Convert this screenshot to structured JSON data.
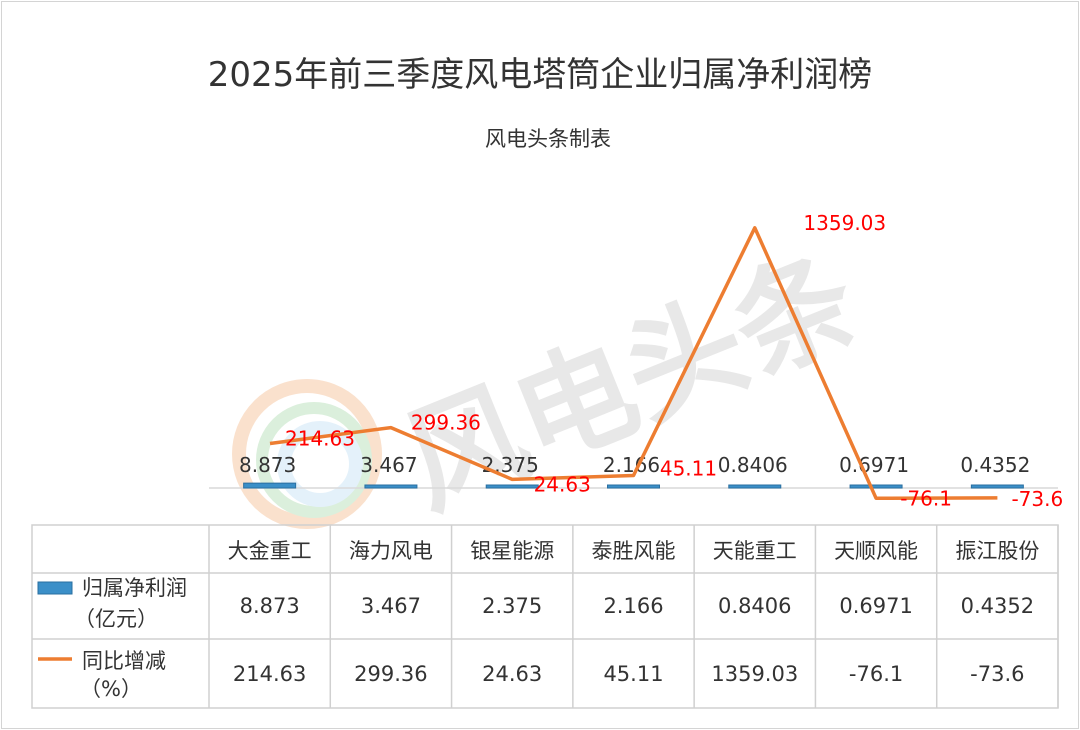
{
  "chart_data": {
    "type": "bar",
    "title": "2025年前三季度风电塔筒企业归属净利润榜",
    "subtitle": "风电头条制表",
    "watermark": "风电头条",
    "categories": [
      "大金重工",
      "海力风电",
      "银星能源",
      "泰胜风能",
      "天能重工",
      "天顺风能",
      "振江股份"
    ],
    "series": [
      {
        "name": "归属净利润（亿元）",
        "type": "bar",
        "values": [
          8.873,
          3.467,
          2.375,
          2.166,
          0.8406,
          0.6971,
          0.4352
        ],
        "labels": [
          "8.873",
          "3.467",
          "2.375",
          "2.166",
          "0.8406",
          "0.6971",
          "0.4352"
        ],
        "color": "#3b8fc8"
      },
      {
        "name": "同比增减（%）",
        "type": "line",
        "values": [
          214.63,
          299.36,
          24.63,
          45.11,
          1359.03,
          -76.1,
          -73.6
        ],
        "labels": [
          "214.63",
          "299.36",
          "24.63",
          "45.11",
          "1359.03",
          "-76.1",
          "-73.6"
        ],
        "color": "#ed7d31",
        "label_color": "#ff0000"
      }
    ],
    "legend_position": "data-table",
    "data_table": true,
    "legend": [
      {
        "label_line1": "归属净利润",
        "label_line2": "（亿元）"
      },
      {
        "label_line1": "同比增减",
        "label_line2": "（%）"
      }
    ]
  }
}
